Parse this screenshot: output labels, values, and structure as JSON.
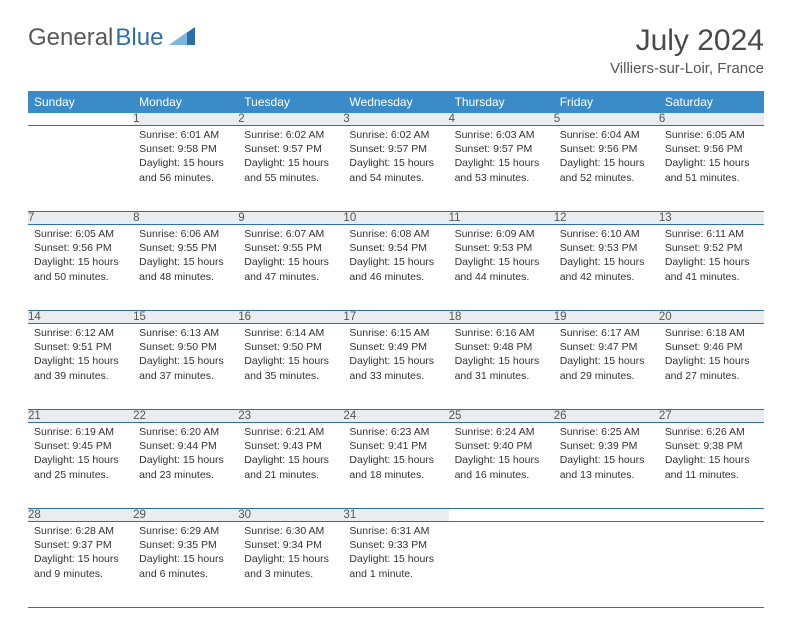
{
  "logo": {
    "text1": "General",
    "text2": "Blue"
  },
  "title": "July 2024",
  "location": "Villiers-sur-Loir, France",
  "colors": {
    "header_bg": "#3b8bc8",
    "header_text": "#ffffff",
    "daynum_bg": "#e9edf0",
    "border": "#2f6fa8",
    "body_text": "#333333",
    "title_text": "#4a4a4a"
  },
  "weekdays": [
    "Sunday",
    "Monday",
    "Tuesday",
    "Wednesday",
    "Thursday",
    "Friday",
    "Saturday"
  ],
  "weeks": [
    {
      "daynums": [
        "",
        "1",
        "2",
        "3",
        "4",
        "5",
        "6"
      ],
      "cells": [
        null,
        {
          "sunrise": "6:01 AM",
          "sunset": "9:58 PM",
          "daylight": "15 hours and 56 minutes."
        },
        {
          "sunrise": "6:02 AM",
          "sunset": "9:57 PM",
          "daylight": "15 hours and 55 minutes."
        },
        {
          "sunrise": "6:02 AM",
          "sunset": "9:57 PM",
          "daylight": "15 hours and 54 minutes."
        },
        {
          "sunrise": "6:03 AM",
          "sunset": "9:57 PM",
          "daylight": "15 hours and 53 minutes."
        },
        {
          "sunrise": "6:04 AM",
          "sunset": "9:56 PM",
          "daylight": "15 hours and 52 minutes."
        },
        {
          "sunrise": "6:05 AM",
          "sunset": "9:56 PM",
          "daylight": "15 hours and 51 minutes."
        }
      ]
    },
    {
      "daynums": [
        "7",
        "8",
        "9",
        "10",
        "11",
        "12",
        "13"
      ],
      "cells": [
        {
          "sunrise": "6:05 AM",
          "sunset": "9:56 PM",
          "daylight": "15 hours and 50 minutes."
        },
        {
          "sunrise": "6:06 AM",
          "sunset": "9:55 PM",
          "daylight": "15 hours and 48 minutes."
        },
        {
          "sunrise": "6:07 AM",
          "sunset": "9:55 PM",
          "daylight": "15 hours and 47 minutes."
        },
        {
          "sunrise": "6:08 AM",
          "sunset": "9:54 PM",
          "daylight": "15 hours and 46 minutes."
        },
        {
          "sunrise": "6:09 AM",
          "sunset": "9:53 PM",
          "daylight": "15 hours and 44 minutes."
        },
        {
          "sunrise": "6:10 AM",
          "sunset": "9:53 PM",
          "daylight": "15 hours and 42 minutes."
        },
        {
          "sunrise": "6:11 AM",
          "sunset": "9:52 PM",
          "daylight": "15 hours and 41 minutes."
        }
      ]
    },
    {
      "daynums": [
        "14",
        "15",
        "16",
        "17",
        "18",
        "19",
        "20"
      ],
      "cells": [
        {
          "sunrise": "6:12 AM",
          "sunset": "9:51 PM",
          "daylight": "15 hours and 39 minutes."
        },
        {
          "sunrise": "6:13 AM",
          "sunset": "9:50 PM",
          "daylight": "15 hours and 37 minutes."
        },
        {
          "sunrise": "6:14 AM",
          "sunset": "9:50 PM",
          "daylight": "15 hours and 35 minutes."
        },
        {
          "sunrise": "6:15 AM",
          "sunset": "9:49 PM",
          "daylight": "15 hours and 33 minutes."
        },
        {
          "sunrise": "6:16 AM",
          "sunset": "9:48 PM",
          "daylight": "15 hours and 31 minutes."
        },
        {
          "sunrise": "6:17 AM",
          "sunset": "9:47 PM",
          "daylight": "15 hours and 29 minutes."
        },
        {
          "sunrise": "6:18 AM",
          "sunset": "9:46 PM",
          "daylight": "15 hours and 27 minutes."
        }
      ]
    },
    {
      "daynums": [
        "21",
        "22",
        "23",
        "24",
        "25",
        "26",
        "27"
      ],
      "cells": [
        {
          "sunrise": "6:19 AM",
          "sunset": "9:45 PM",
          "daylight": "15 hours and 25 minutes."
        },
        {
          "sunrise": "6:20 AM",
          "sunset": "9:44 PM",
          "daylight": "15 hours and 23 minutes."
        },
        {
          "sunrise": "6:21 AM",
          "sunset": "9:43 PM",
          "daylight": "15 hours and 21 minutes."
        },
        {
          "sunrise": "6:23 AM",
          "sunset": "9:41 PM",
          "daylight": "15 hours and 18 minutes."
        },
        {
          "sunrise": "6:24 AM",
          "sunset": "9:40 PM",
          "daylight": "15 hours and 16 minutes."
        },
        {
          "sunrise": "6:25 AM",
          "sunset": "9:39 PM",
          "daylight": "15 hours and 13 minutes."
        },
        {
          "sunrise": "6:26 AM",
          "sunset": "9:38 PM",
          "daylight": "15 hours and 11 minutes."
        }
      ]
    },
    {
      "daynums": [
        "28",
        "29",
        "30",
        "31",
        "",
        "",
        ""
      ],
      "cells": [
        {
          "sunrise": "6:28 AM",
          "sunset": "9:37 PM",
          "daylight": "15 hours and 9 minutes."
        },
        {
          "sunrise": "6:29 AM",
          "sunset": "9:35 PM",
          "daylight": "15 hours and 6 minutes."
        },
        {
          "sunrise": "6:30 AM",
          "sunset": "9:34 PM",
          "daylight": "15 hours and 3 minutes."
        },
        {
          "sunrise": "6:31 AM",
          "sunset": "9:33 PM",
          "daylight": "15 hours and 1 minute."
        },
        null,
        null,
        null
      ]
    }
  ],
  "labels": {
    "sunrise": "Sunrise:",
    "sunset": "Sunset:",
    "daylight": "Daylight:"
  }
}
